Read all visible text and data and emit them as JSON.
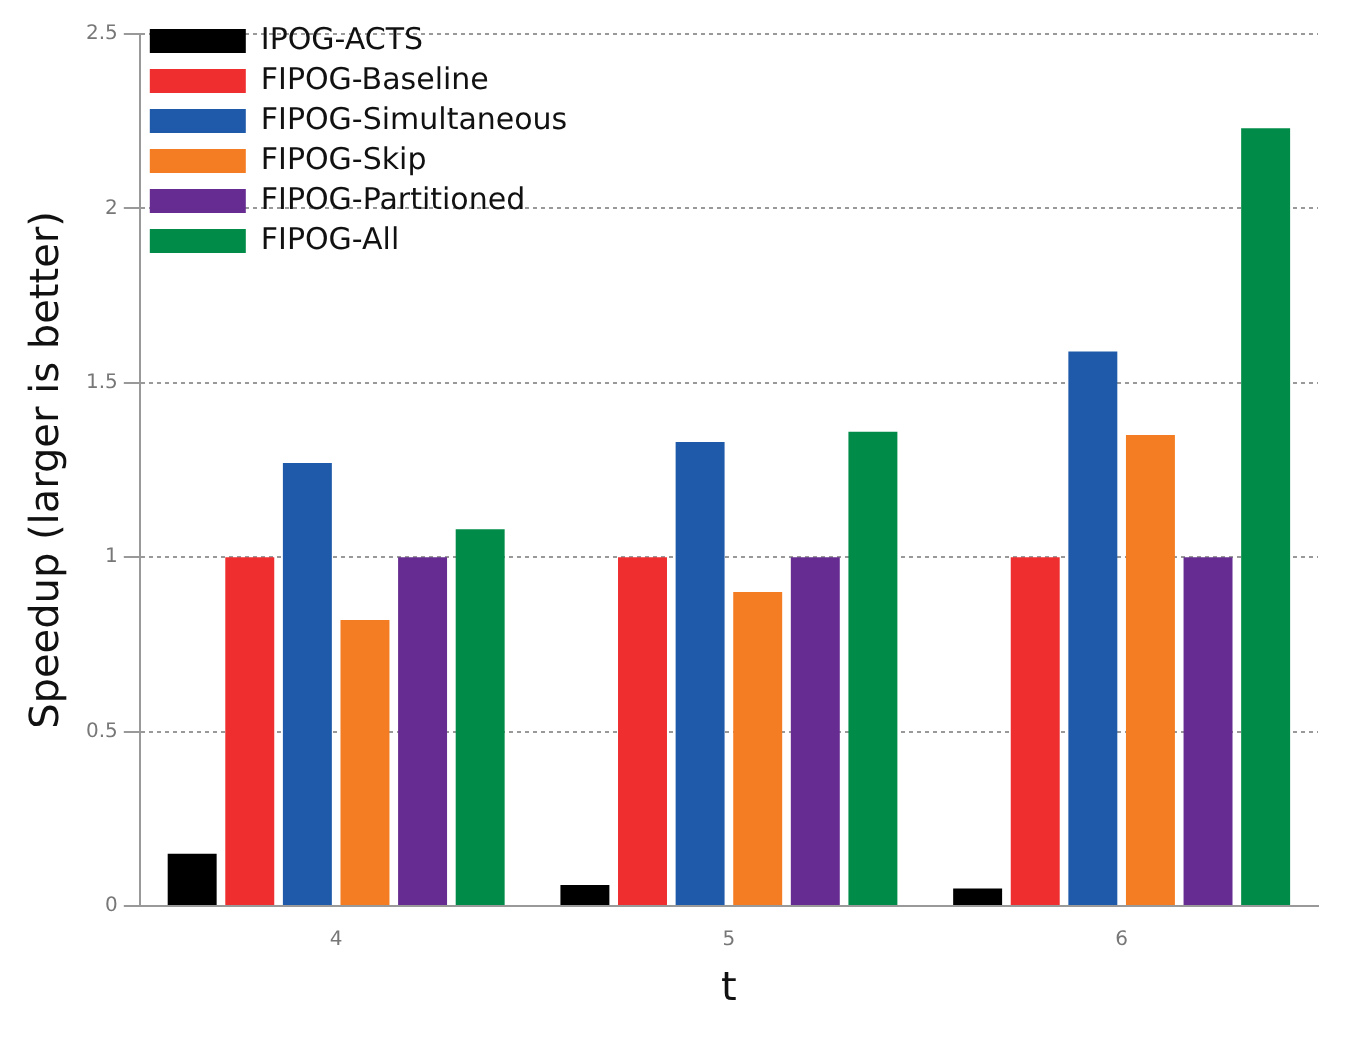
{
  "chart_data": {
    "type": "bar",
    "xlabel": "t",
    "ylabel": "Speedup (larger is better)",
    "categories": [
      "4",
      "5",
      "6"
    ],
    "series": [
      {
        "name": "IPOG-ACTS",
        "color": "#000000",
        "values": [
          0.15,
          0.06,
          0.05
        ]
      },
      {
        "name": "FIPOG-Baseline",
        "color": "#ee2e2f",
        "values": [
          1,
          1,
          1
        ]
      },
      {
        "name": "FIPOG-Simultaneous",
        "color": "#1f5aaa",
        "values": [
          1.27,
          1.33,
          1.59
        ]
      },
      {
        "name": "FIPOG-Skip",
        "color": "#f47d23",
        "values": [
          0.82,
          0.9,
          1.35
        ]
      },
      {
        "name": "FIPOG-Partitioned",
        "color": "#662c91",
        "values": [
          1,
          1,
          1
        ]
      },
      {
        "name": "FIPOG-All",
        "color": "#008c48",
        "values": [
          1.08,
          1.36,
          2.23
        ]
      }
    ],
    "ylim": [
      0,
      2.5
    ],
    "yticks": [
      0,
      0.5,
      1,
      1.5,
      2,
      2.5
    ],
    "grid": "y",
    "legend": "top left"
  }
}
